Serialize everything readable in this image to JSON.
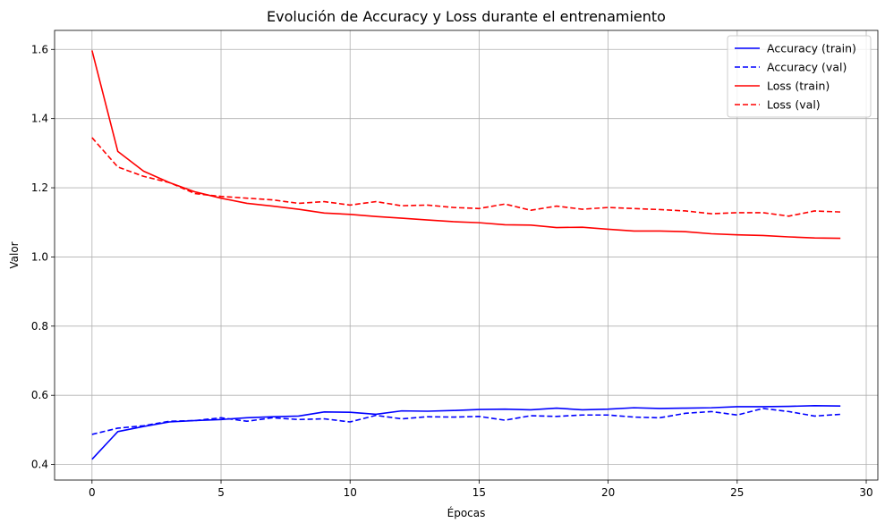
{
  "chart_data": {
    "type": "line",
    "title": "Evolución de Accuracy y Loss durante el entrenamiento",
    "xlabel": "Épocas",
    "ylabel": "Valor",
    "xlim": [
      -1.45,
      30.45
    ],
    "ylim": [
      0.355,
      1.655
    ],
    "xticks": [
      0,
      5,
      10,
      15,
      20,
      25,
      30
    ],
    "yticks": [
      0.4,
      0.6,
      0.8,
      1.0,
      1.2,
      1.4,
      1.6
    ],
    "grid": true,
    "legend_position": "top-right",
    "x": [
      0,
      1,
      2,
      3,
      4,
      5,
      6,
      7,
      8,
      9,
      10,
      11,
      12,
      13,
      14,
      15,
      16,
      17,
      18,
      19,
      20,
      21,
      22,
      23,
      24,
      25,
      26,
      27,
      28,
      29
    ],
    "series": [
      {
        "name": "Accuracy (train)",
        "color": "#0000ff",
        "dash": "solid",
        "values": [
          0.415,
          0.495,
          0.51,
          0.523,
          0.527,
          0.53,
          0.535,
          0.538,
          0.54,
          0.552,
          0.551,
          0.545,
          0.555,
          0.554,
          0.556,
          0.559,
          0.56,
          0.558,
          0.563,
          0.558,
          0.56,
          0.564,
          0.562,
          0.563,
          0.564,
          0.567,
          0.567,
          0.568,
          0.57,
          0.569
        ]
      },
      {
        "name": "Accuracy (val)",
        "color": "#0000ff",
        "dash": "dashed",
        "values": [
          0.487,
          0.505,
          0.512,
          0.525,
          0.527,
          0.535,
          0.525,
          0.535,
          0.53,
          0.532,
          0.523,
          0.542,
          0.532,
          0.538,
          0.537,
          0.539,
          0.528,
          0.541,
          0.539,
          0.543,
          0.543,
          0.537,
          0.535,
          0.548,
          0.553,
          0.543,
          0.562,
          0.553,
          0.54,
          0.545
        ]
      },
      {
        "name": "Loss (train)",
        "color": "#ff0000",
        "dash": "solid",
        "values": [
          1.597,
          1.305,
          1.248,
          1.215,
          1.188,
          1.17,
          1.155,
          1.147,
          1.138,
          1.127,
          1.123,
          1.117,
          1.112,
          1.107,
          1.102,
          1.099,
          1.093,
          1.092,
          1.085,
          1.086,
          1.08,
          1.075,
          1.075,
          1.073,
          1.067,
          1.064,
          1.062,
          1.058,
          1.055,
          1.054
        ]
      },
      {
        "name": "Loss (val)",
        "color": "#ff0000",
        "dash": "dashed",
        "values": [
          1.345,
          1.26,
          1.233,
          1.215,
          1.183,
          1.175,
          1.17,
          1.165,
          1.155,
          1.16,
          1.15,
          1.16,
          1.148,
          1.15,
          1.143,
          1.14,
          1.153,
          1.135,
          1.147,
          1.138,
          1.143,
          1.14,
          1.137,
          1.133,
          1.125,
          1.128,
          1.128,
          1.118,
          1.133,
          1.13
        ]
      }
    ]
  }
}
